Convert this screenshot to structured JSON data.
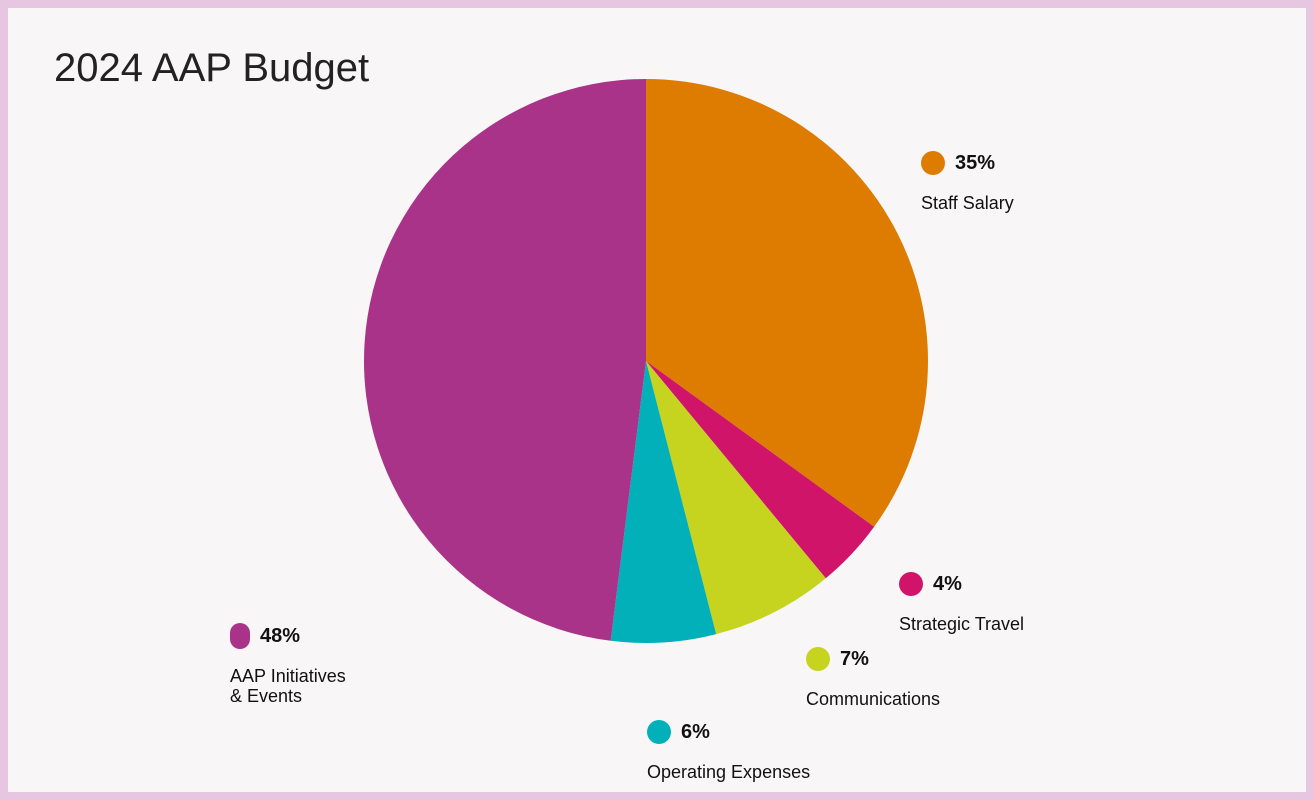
{
  "chart_data": {
    "type": "pie",
    "title": "2024 AAP Budget",
    "slices": [
      {
        "label": "Staff Salary",
        "value": 35,
        "pct_label": "35%",
        "color": "#dd7c00"
      },
      {
        "label": "Strategic Travel",
        "value": 4,
        "pct_label": "4%",
        "color": "#cf1469"
      },
      {
        "label": "Communications",
        "value": 7,
        "pct_label": "7%",
        "color": "#c6d31f"
      },
      {
        "label": "Operating Expenses",
        "value": 6,
        "pct_label": "6%",
        "color": "#01b0b8"
      },
      {
        "label": "AAP Initiatives\n& Events",
        "value": 48,
        "pct_label": "48%",
        "color": "#a93389"
      }
    ],
    "start_angle": "12 o'clock",
    "direction": "clockwise"
  },
  "colors": {
    "background": "#f8f6f7",
    "border": "#e6c6e0"
  }
}
